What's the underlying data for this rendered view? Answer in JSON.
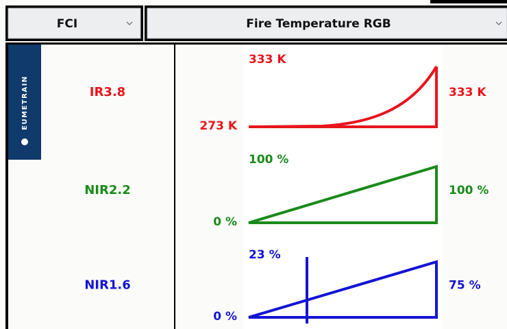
{
  "header": {
    "left_dropdown": "FCI",
    "right_dropdown": "Fire Temperature RGB"
  },
  "logo": "EUMETRAIN",
  "rows": [
    {
      "channel": "IR3.8",
      "color": "#e8141c",
      "top_label": "333 K",
      "min_label": "273 K",
      "max_label": "333 K"
    },
    {
      "channel": "NIR2.2",
      "color": "#1a8a1a",
      "top_label": "100 %",
      "min_label": "0 %",
      "max_label": "100 %"
    },
    {
      "channel": "NIR1.6",
      "color": "#1414d4",
      "top_label": "23 %",
      "min_label": "0 %",
      "max_label": "75 %"
    }
  ]
}
